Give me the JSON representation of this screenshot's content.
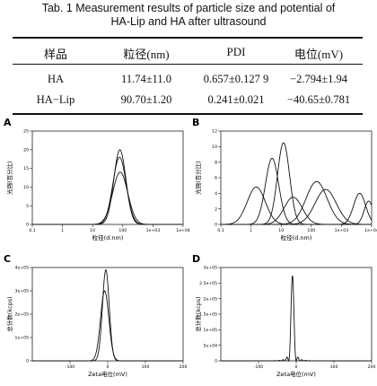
{
  "caption": {
    "line1": "Tab. 1 Measurement results of particle size and potential of",
    "line2": "HA-Lip and HA after ultrasound"
  },
  "table": {
    "headers": [
      "样品",
      "粒径(nm)",
      "PDI",
      "电位(mV)"
    ],
    "rows": [
      [
        "HA",
        "11.74±11.0",
        "0.657±0.127 9",
        "−2.794±1.94"
      ],
      [
        "HA−Lip",
        "90.70±1.20",
        "0.241±0.021",
        "−40.65±0.781"
      ]
    ]
  },
  "chart_data": [
    {
      "type": "line",
      "panel_label": "A",
      "xlabel": "粒径(d.nm)",
      "ylabel": "光强(百分比)",
      "xscale": "log",
      "xlim": [
        0.1,
        10000
      ],
      "ylim": [
        0,
        25
      ],
      "x_tick_labels": [
        "0.1",
        "1",
        "10",
        "100",
        "1e+03",
        "1e+04"
      ],
      "y_tick_labels": [
        "0",
        "5",
        "10",
        "15",
        "20",
        "25"
      ],
      "series": [
        {
          "peak_x": 80,
          "peak_y": 20,
          "log_sigma": 0.2
        },
        {
          "peak_x": 78,
          "peak_y": 18,
          "log_sigma": 0.22
        },
        {
          "peak_x": 82,
          "peak_y": 14,
          "log_sigma": 0.25
        }
      ]
    },
    {
      "type": "line",
      "panel_label": "B",
      "xlabel": "粒径(d.nm)",
      "ylabel": "光强(百分比)",
      "xscale": "log",
      "xlim": [
        0.1,
        10000
      ],
      "ylim": [
        0,
        12
      ],
      "x_tick_labels": [
        "0.1",
        "1",
        "10",
        "100",
        "1e+03",
        "1e+04"
      ],
      "y_tick_labels": [
        "0",
        "2",
        "4",
        "6",
        "8",
        "10",
        "12"
      ],
      "series": [
        {
          "peak_x": 1.5,
          "peak_y": 4.8,
          "log_sigma": 0.3
        },
        {
          "peak_x": 5,
          "peak_y": 8.5,
          "log_sigma": 0.22
        },
        {
          "peak_x": 12,
          "peak_y": 10.5,
          "log_sigma": 0.2
        },
        {
          "peak_x": 25,
          "peak_y": 3.5,
          "log_sigma": 0.3
        },
        {
          "peak_x": 150,
          "peak_y": 5.5,
          "log_sigma": 0.35
        },
        {
          "peak_x": 300,
          "peak_y": 4.5,
          "log_sigma": 0.35
        },
        {
          "peak_x": 4000,
          "peak_y": 4,
          "log_sigma": 0.2
        },
        {
          "peak_x": 8000,
          "peak_y": 3,
          "log_sigma": 0.15
        }
      ]
    },
    {
      "type": "line",
      "panel_label": "C",
      "xlabel": "Zeta电位(mV)",
      "ylabel": "总计数(kcps)",
      "xlim": [
        -200,
        200
      ],
      "ylim": [
        0,
        400000
      ],
      "x_tick_labels": [
        "-100",
        "0",
        "100",
        "200"
      ],
      "y_tick_labels": [
        "0",
        "1e+05",
        "2e+05",
        "3e+05",
        "4e+05"
      ],
      "series": [
        {
          "peak_x": -5,
          "peak_y": 390000,
          "sigma": 9
        },
        {
          "peak_x": -8,
          "peak_y": 300000,
          "sigma": 11
        }
      ]
    },
    {
      "type": "line",
      "panel_label": "D",
      "xlabel": "Zeta电位(mV)",
      "ylabel": "总计数(kcps)",
      "xlim": [
        -200,
        200
      ],
      "ylim": [
        0,
        350000
      ],
      "x_tick_labels": [
        "-100",
        "0",
        "100",
        "200"
      ],
      "y_tick_labels": [
        "0",
        "5e+04",
        "1e+05",
        "1.5e+05",
        "2e+05",
        "2.5e+05",
        "3e+05"
      ],
      "series": [
        {
          "peak_x": -10,
          "peak_y": 320000,
          "sinc_period": 10
        }
      ]
    }
  ]
}
